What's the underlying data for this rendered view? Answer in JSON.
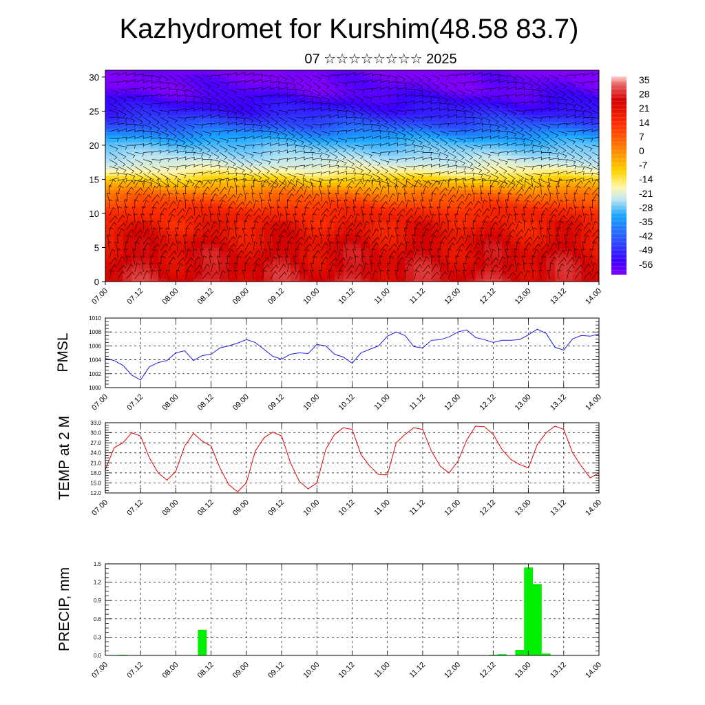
{
  "header": {
    "title": "Kazhydromet for Kurshim(48.58 83.7)",
    "subtitle": "07 ☆☆☆☆☆☆☆☆ 2025"
  },
  "chart_data": [
    {
      "type": "heatmap",
      "name": "temperature-wind-section",
      "x_ticks": [
        "07.00",
        "07.12",
        "08.00",
        "08.12",
        "09.00",
        "09.12",
        "10.00",
        "10.12",
        "11.00",
        "11.12",
        "12.00",
        "12.12",
        "13.00",
        "13.12",
        "14.00"
      ],
      "y_ticks": [
        0,
        5,
        10,
        15,
        20,
        25,
        30
      ],
      "ylim": [
        0,
        31
      ],
      "colorbar_labels": [
        "35",
        "28",
        "21",
        "14",
        "7",
        "0",
        "-7",
        "-14",
        "-21",
        "-28",
        "-35",
        "-42",
        "-49",
        "-56"
      ],
      "colorbar_range": [
        -60,
        38
      ],
      "level_temperature_profile": [
        [
          0,
          30
        ],
        [
          5,
          26
        ],
        [
          10,
          18
        ],
        [
          13,
          7
        ],
        [
          15,
          -6
        ],
        [
          17,
          -18
        ],
        [
          20,
          -30
        ],
        [
          23,
          -45
        ],
        [
          25,
          -52
        ],
        [
          28,
          -58
        ],
        [
          31,
          -60
        ]
      ],
      "overlay": "wind barbs",
      "colors": {
        "hot": "#c80000",
        "cold": "#3a00ff",
        "barbs": "#000000"
      }
    },
    {
      "type": "line",
      "name": "pmsl",
      "ylabel": "PMSL",
      "ylim": [
        1000,
        1010
      ],
      "y_ticks": [
        "1000",
        "1002",
        "1004",
        "1006",
        "1008",
        "1010"
      ],
      "x_ticks": [
        "07.00",
        "07.12",
        "08.00",
        "08.12",
        "09.00",
        "09.12",
        "10.00",
        "10.12",
        "11.00",
        "11.12",
        "12.00",
        "12.12",
        "13.00",
        "13.12",
        "14.00"
      ],
      "x_hours_start": 0,
      "x_hours_step": 3,
      "values": [
        1004.2,
        1003.9,
        1003.2,
        1001.8,
        1001.1,
        1003.0,
        1003.6,
        1003.9,
        1005.0,
        1005.3,
        1003.9,
        1004.6,
        1004.8,
        1005.7,
        1006.0,
        1006.4,
        1006.9,
        1006.5,
        1005.5,
        1004.5,
        1004.1,
        1004.8,
        1005.0,
        1004.9,
        1006.2,
        1006.0,
        1004.8,
        1004.4,
        1003.5,
        1005.0,
        1005.5,
        1006.0,
        1007.4,
        1008.0,
        1007.5,
        1005.9,
        1005.7,
        1006.8,
        1006.9,
        1007.3,
        1008.0,
        1008.3,
        1007.2,
        1006.9,
        1006.5,
        1006.8,
        1006.8,
        1006.9,
        1007.6,
        1008.4,
        1007.8,
        1005.8,
        1005.4,
        1007.0,
        1007.5,
        1007.4,
        1007.7
      ],
      "color": "#1a1ae6"
    },
    {
      "type": "line",
      "name": "temp2m",
      "ylabel": "TEMP at 2 M",
      "ylim": [
        12,
        33
      ],
      "y_ticks": [
        "12.0",
        "15.0",
        "18.0",
        "21.0",
        "24.0",
        "27.0",
        "30.0",
        "33.0"
      ],
      "x_ticks": [
        "07.00",
        "07.12",
        "08.00",
        "08.12",
        "09.00",
        "09.12",
        "10.00",
        "10.12",
        "11.00",
        "11.12",
        "12.00",
        "12.12",
        "13.00",
        "13.12",
        "14.00"
      ],
      "x_hours_start": 0,
      "x_hours_step": 3,
      "values": [
        19.0,
        25.5,
        27.0,
        30.0,
        29.0,
        22.5,
        18.0,
        15.8,
        18.5,
        26.0,
        29.8,
        27.5,
        26.0,
        19.5,
        14.5,
        12.3,
        15.0,
        24.5,
        28.5,
        30.2,
        29.0,
        21.0,
        15.5,
        13.2,
        15.0,
        25.0,
        29.5,
        31.5,
        31.0,
        23.5,
        20.0,
        17.5,
        17.4,
        27.0,
        29.5,
        31.5,
        31.0,
        24.5,
        20.0,
        18.0,
        21.5,
        27.8,
        32.0,
        31.8,
        29.5,
        25.0,
        22.0,
        20.5,
        19.5,
        26.5,
        30.0,
        32.0,
        31.0,
        24.0,
        20.0,
        16.5,
        18.0
      ],
      "color": "#e00000"
    },
    {
      "type": "bar",
      "name": "precip",
      "ylabel": "PRECIP, mm",
      "ylim": [
        0,
        1.5
      ],
      "y_ticks": [
        "0.0",
        "0.3",
        "0.6",
        "0.9",
        "1.2",
        "1.5"
      ],
      "x_ticks": [
        "07.00",
        "07.12",
        "08.00",
        "08.12",
        "09.00",
        "09.12",
        "10.00",
        "10.12",
        "11.00",
        "11.12",
        "12.00",
        "12.12",
        "13.00",
        "13.12",
        "14.00"
      ],
      "x_hours_start": 0,
      "x_hours_step": 3,
      "values": [
        0,
        0,
        0.01,
        0,
        0,
        0,
        0,
        0,
        0,
        0,
        0,
        0.42,
        0,
        0,
        0,
        0,
        0,
        0,
        0,
        0,
        0,
        0,
        0,
        0,
        0,
        0,
        0,
        0,
        0,
        0,
        0,
        0,
        0,
        0,
        0,
        0,
        0,
        0,
        0,
        0,
        0,
        0,
        0,
        0,
        0.01,
        0.02,
        0,
        0.09,
        1.44,
        1.17,
        0.03,
        0,
        0,
        0,
        0,
        0,
        0
      ],
      "color": "#00ee00"
    }
  ]
}
